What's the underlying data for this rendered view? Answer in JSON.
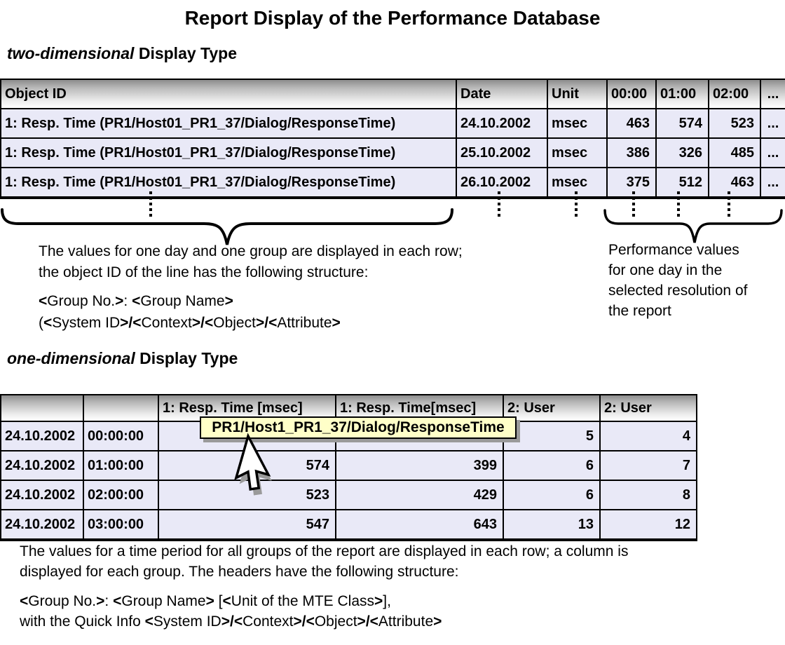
{
  "title": "Report Display of the Performance Database",
  "sections": {
    "two_dim": {
      "italic": "two-dimensional",
      "rest": " Display Type"
    },
    "one_dim": {
      "italic": "one-dimensional",
      "rest": " Display Type"
    }
  },
  "table1": {
    "headers": [
      "Object ID",
      "Date",
      "Unit",
      "00:00",
      "01:00",
      "02:00",
      "..."
    ],
    "rows": [
      [
        "1: Resp. Time (PR1/Host01_PR1_37/Dialog/ResponseTime)",
        "24.10.2002",
        "msec",
        "463",
        "574",
        "523",
        "..."
      ],
      [
        "1: Resp. Time (PR1/Host01_PR1_37/Dialog/ResponseTime)",
        "25.10.2002",
        "msec",
        "386",
        "326",
        "485",
        "..."
      ],
      [
        "1: Resp. Time (PR1/Host01_PR1_37/Dialog/ResponseTime)",
        "26.10.2002",
        "msec",
        "375",
        "512",
        "463",
        "..."
      ]
    ]
  },
  "annotations": {
    "left_lines": [
      "The values for one day and one group are displayed in each row;",
      "the object ID of the line has the following structure:"
    ],
    "left_structure": [
      "<Group No.>: <Group Name>",
      "(<System ID>/<Context>/<Object>/<Attribute>"
    ],
    "right_lines": [
      "Performance values",
      "for one day in the",
      "selected resolution of",
      "the report"
    ]
  },
  "table2": {
    "headers": [
      "",
      "",
      "1: Resp. Time [msec]",
      "1: Resp. Time[msec]",
      "2: User",
      "2: User"
    ],
    "rows": [
      [
        "24.10.2002",
        "00:00:00",
        "",
        "",
        "5",
        "4"
      ],
      [
        "24.10.2002",
        "01:00:00",
        "574",
        "399",
        "6",
        "7"
      ],
      [
        "24.10.2002",
        "02:00:00",
        "523",
        "429",
        "6",
        "8"
      ],
      [
        "24.10.2002",
        "03:00:00",
        "547",
        "643",
        "13",
        "12"
      ]
    ],
    "tooltip": "PR1/Host1_PR1_37/Dialog/ResponseTime"
  },
  "bottom": {
    "lines": [
      "The values for a time period for all groups of the report are displayed in each row; a column is",
      "displayed for each group. The headers have the following structure:"
    ],
    "structure": [
      "<Group No.>: <Group Name> [<Unit of the MTE Class>],",
      "with the Quick Info <System ID>/<Context>/<Object>/<Attribute>"
    ]
  },
  "colors": {
    "row_bg": "#E9E9F7",
    "header_gradient_top": "#8C8C8C",
    "header_gradient_bottom": "#FFFFFF",
    "border": "#000000",
    "tooltip_bg": "#FFFFC8",
    "tooltip_shadow": "#9A9A9A"
  }
}
